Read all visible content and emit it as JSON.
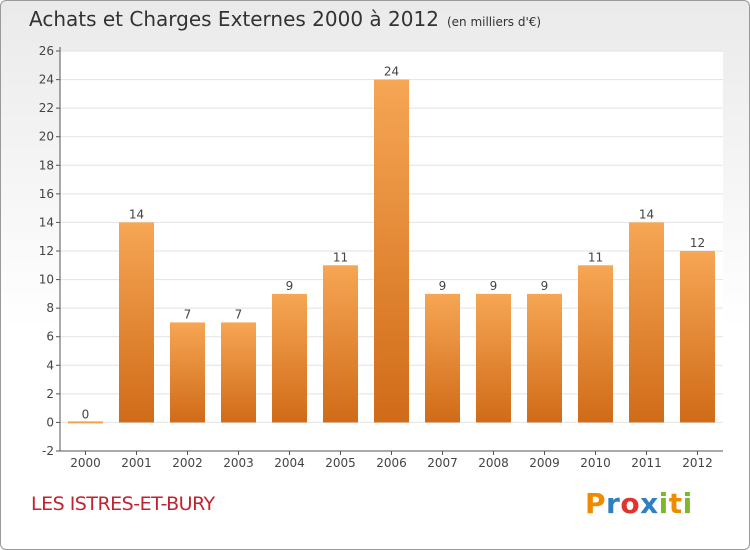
{
  "header": {
    "title": "Achats et Charges Externes 2000 à 2012",
    "unit": "(en milliers d'€)"
  },
  "footer": {
    "place": "LES ISTRES-ET-BURY",
    "logo": "Proxiti"
  },
  "colors": {
    "bar_light": "#f6a654",
    "bar_dark": "#d06b18",
    "zero_line": "#f2a24d",
    "place_text": "#c0242f",
    "logo_letters": [
      "#f08a00",
      "#2f7fc1",
      "#e0332e",
      "#2f7fc1",
      "#7ab929",
      "#f08a00",
      "#7ab929"
    ]
  },
  "chart_data": {
    "type": "bar",
    "categories": [
      "2000",
      "2001",
      "2002",
      "2003",
      "2004",
      "2005",
      "2006",
      "2007",
      "2008",
      "2009",
      "2010",
      "2011",
      "2012"
    ],
    "values": [
      0,
      14,
      7,
      7,
      9,
      11,
      24,
      9,
      9,
      9,
      11,
      14,
      12
    ],
    "data_labels": [
      "0",
      "14",
      "7",
      "7",
      "9",
      "11",
      "24",
      "9",
      "9",
      "9",
      "11",
      "14",
      "12"
    ],
    "yticks": [
      "-2",
      "0",
      "2",
      "4",
      "6",
      "8",
      "10",
      "12",
      "14",
      "16",
      "18",
      "20",
      "22",
      "24",
      "26"
    ],
    "ylim": [
      -2,
      26
    ],
    "title": "Achats et Charges Externes 2000 à 2012",
    "xlabel": "",
    "ylabel": "",
    "grid": true
  }
}
